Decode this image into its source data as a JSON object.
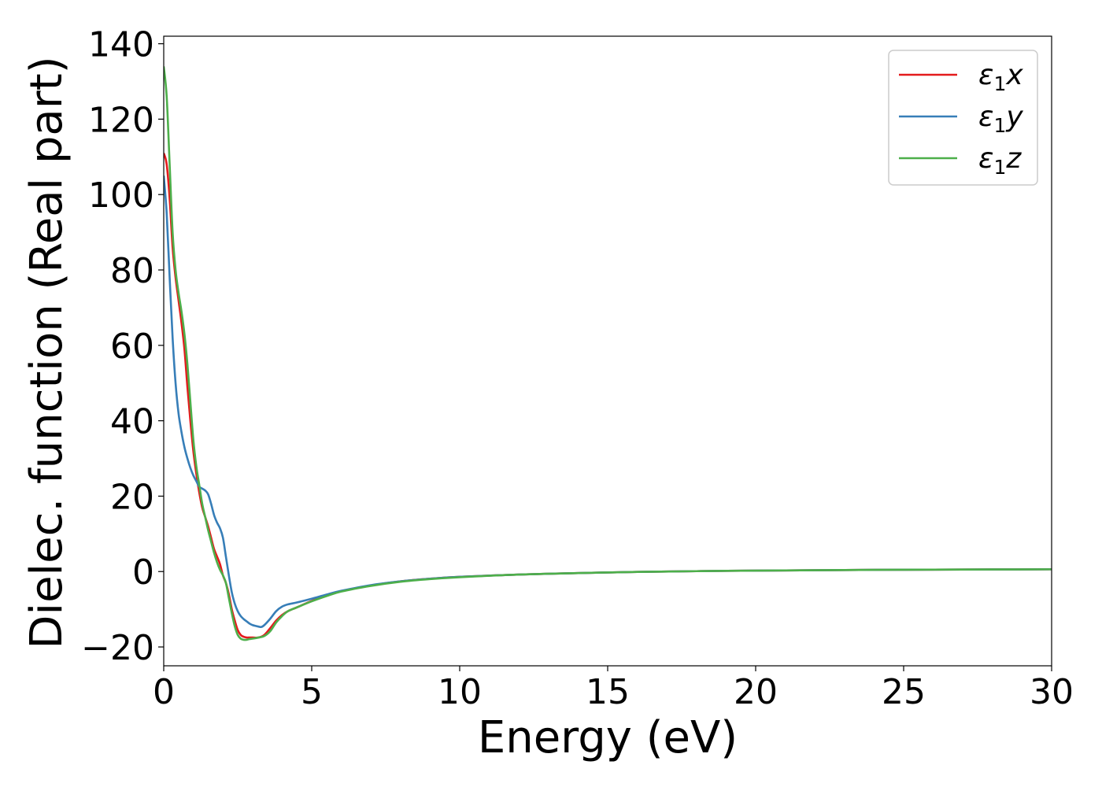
{
  "chart_data": {
    "type": "line",
    "title": "",
    "xlabel": "Energy (eV)",
    "ylabel": "Dielec. function (Real part)",
    "xlim": [
      0,
      30
    ],
    "ylim": [
      -25,
      142
    ],
    "xticks": [
      0,
      5,
      10,
      15,
      20,
      25,
      30
    ],
    "xtick_labels": [
      "0",
      "5",
      "10",
      "15",
      "20",
      "25",
      "30"
    ],
    "yticks": [
      -20,
      0,
      20,
      40,
      60,
      80,
      100,
      120,
      140
    ],
    "ytick_labels": [
      "−20",
      "0",
      "20",
      "40",
      "60",
      "80",
      "100",
      "120",
      "140"
    ],
    "grid": false,
    "legend_position": "top-right",
    "series": [
      {
        "name": "ε₁x",
        "legend_base": "ε",
        "legend_sub": "1",
        "legend_suffix": "x",
        "color": "#e41a1c",
        "x": [
          0,
          0.1,
          0.2,
          0.3,
          0.4,
          0.5,
          0.6,
          0.7,
          0.8,
          0.9,
          1.0,
          1.1,
          1.2,
          1.3,
          1.4,
          1.5,
          1.6,
          1.7,
          1.8,
          1.9,
          2.0,
          2.1,
          2.2,
          2.3,
          2.4,
          2.5,
          2.6,
          2.7,
          2.8,
          2.9,
          3.0,
          3.2,
          3.4,
          3.6,
          3.8,
          4.0,
          4.2,
          4.5,
          5.0,
          5.5,
          6.0,
          7.0,
          8.0,
          9.0,
          10.0,
          12.0,
          14.0,
          16.0,
          18.0,
          20.0,
          22.0,
          24.0,
          26.0,
          28.0,
          30.0
        ],
        "y": [
          111,
          108,
          99,
          86,
          78,
          72,
          66,
          59,
          49,
          40,
          32,
          26,
          21,
          17,
          14.5,
          12,
          9,
          6,
          4,
          2,
          -1,
          -3,
          -6,
          -10,
          -13,
          -15.5,
          -16.8,
          -17.3,
          -17.5,
          -17.5,
          -17.5,
          -17.5,
          -16.8,
          -15,
          -13,
          -11.5,
          -10.5,
          -9.5,
          -7.8,
          -6.3,
          -5.2,
          -3.7,
          -2.6,
          -1.9,
          -1.4,
          -0.8,
          -0.4,
          -0.1,
          0.1,
          0.25,
          0.35,
          0.45,
          0.5,
          0.55,
          0.6
        ]
      },
      {
        "name": "ε₁y",
        "legend_base": "ε",
        "legend_sub": "1",
        "legend_suffix": "y",
        "color": "#377eb8",
        "x": [
          0,
          0.1,
          0.2,
          0.3,
          0.4,
          0.5,
          0.6,
          0.7,
          0.8,
          0.9,
          1.0,
          1.1,
          1.2,
          1.3,
          1.4,
          1.5,
          1.6,
          1.7,
          1.8,
          1.9,
          2.0,
          2.1,
          2.2,
          2.3,
          2.4,
          2.5,
          2.6,
          2.7,
          2.8,
          2.9,
          3.0,
          3.2,
          3.3,
          3.4,
          3.6,
          3.8,
          4.0,
          4.2,
          4.5,
          5.0,
          5.5,
          6.0,
          7.0,
          8.0,
          9.0,
          10.0,
          12.0,
          14.0,
          16.0,
          18.0,
          20.0,
          22.0,
          24.0,
          26.0,
          28.0,
          30.0
        ],
        "y": [
          105,
          95,
          78,
          62,
          50,
          42,
          37,
          33,
          30,
          27.5,
          25.5,
          24,
          22.5,
          22,
          21.5,
          20.5,
          18,
          15,
          13,
          11.5,
          9,
          4,
          -1,
          -5.5,
          -8.5,
          -10.5,
          -11.8,
          -12.6,
          -13.2,
          -13.8,
          -14.2,
          -14.6,
          -14.7,
          -14.2,
          -12.5,
          -10.5,
          -9.3,
          -8.7,
          -8.2,
          -7.2,
          -6.1,
          -5.1,
          -3.6,
          -2.6,
          -1.9,
          -1.4,
          -0.8,
          -0.4,
          -0.1,
          0.1,
          0.25,
          0.35,
          0.45,
          0.5,
          0.55,
          0.6
        ]
      },
      {
        "name": "ε₁z",
        "legend_base": "ε",
        "legend_sub": "1",
        "legend_suffix": "z",
        "color": "#4daf4a",
        "x": [
          0,
          0.1,
          0.2,
          0.3,
          0.4,
          0.5,
          0.6,
          0.7,
          0.8,
          0.9,
          1.0,
          1.1,
          1.2,
          1.3,
          1.4,
          1.5,
          1.6,
          1.7,
          1.8,
          1.9,
          2.0,
          2.1,
          2.2,
          2.3,
          2.4,
          2.5,
          2.6,
          2.7,
          2.8,
          2.9,
          3.0,
          3.2,
          3.4,
          3.6,
          3.8,
          4.0,
          4.2,
          4.5,
          5.0,
          5.5,
          6.0,
          7.0,
          8.0,
          9.0,
          10.0,
          12.0,
          14.0,
          16.0,
          18.0,
          20.0,
          22.0,
          24.0,
          26.0,
          28.0,
          30.0
        ],
        "y": [
          134,
          126,
          108,
          90,
          80,
          74,
          69,
          63,
          55,
          45,
          35,
          28,
          23,
          18,
          14.5,
          11,
          8,
          5,
          2.5,
          0.5,
          -1,
          -3,
          -7,
          -11,
          -14.5,
          -16.8,
          -17.8,
          -18.1,
          -18.1,
          -17.9,
          -17.8,
          -17.5,
          -17.1,
          -15.8,
          -13.5,
          -11.8,
          -10.5,
          -9.5,
          -7.9,
          -6.5,
          -5.3,
          -3.8,
          -2.7,
          -2.0,
          -1.5,
          -0.8,
          -0.4,
          -0.1,
          0.1,
          0.25,
          0.35,
          0.45,
          0.5,
          0.55,
          0.6
        ]
      }
    ]
  }
}
